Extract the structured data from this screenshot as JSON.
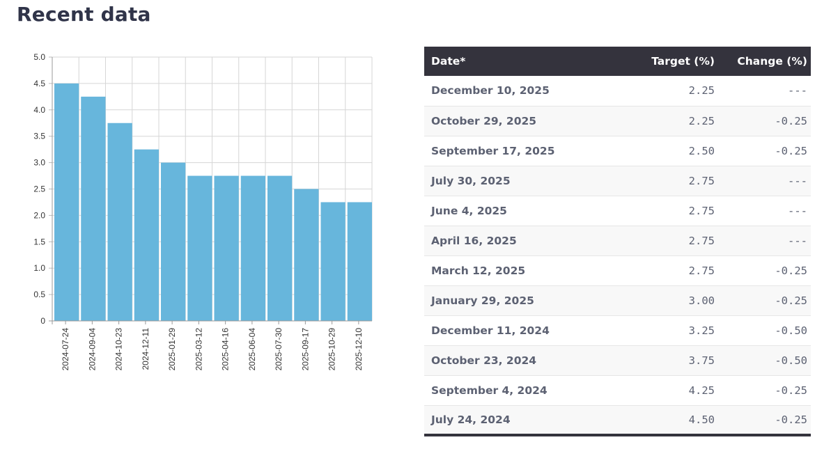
{
  "page": {
    "title": "Recent data"
  },
  "chart_data": {
    "type": "bar",
    "title": "",
    "xlabel": "",
    "ylabel": "",
    "ylim": [
      0,
      5
    ],
    "yticks": [
      "0",
      "0.5",
      "1.0",
      "1.5",
      "2.0",
      "2.5",
      "3.0",
      "3.5",
      "4.0",
      "4.5",
      "5.0"
    ],
    "grid": true,
    "categories": [
      "2024-07-24",
      "2024-09-04",
      "2024-10-23",
      "2024-12-11",
      "2025-01-29",
      "2025-03-12",
      "2025-04-16",
      "2025-06-04",
      "2025-07-30",
      "2025-09-17",
      "2025-10-29",
      "2025-12-10"
    ],
    "values": [
      4.5,
      4.25,
      3.75,
      3.25,
      3.0,
      2.75,
      2.75,
      2.75,
      2.75,
      2.5,
      2.25,
      2.25
    ],
    "bar_color": "#67b6dc"
  },
  "table": {
    "headers": {
      "date": "Date*",
      "target": "Target (%)",
      "change": "Change (%)"
    },
    "rows": [
      {
        "date": "December 10, 2025",
        "target": "2.25",
        "change": "---"
      },
      {
        "date": "October 29, 2025",
        "target": "2.25",
        "change": "-0.25"
      },
      {
        "date": "September 17, 2025",
        "target": "2.50",
        "change": "-0.25"
      },
      {
        "date": "July 30, 2025",
        "target": "2.75",
        "change": "---"
      },
      {
        "date": "June 4, 2025",
        "target": "2.75",
        "change": "---"
      },
      {
        "date": "April 16, 2025",
        "target": "2.75",
        "change": "---"
      },
      {
        "date": "March 12, 2025",
        "target": "2.75",
        "change": "-0.25"
      },
      {
        "date": "January 29, 2025",
        "target": "3.00",
        "change": "-0.25"
      },
      {
        "date": "December 11, 2024",
        "target": "3.25",
        "change": "-0.50"
      },
      {
        "date": "October 23, 2024",
        "target": "3.75",
        "change": "-0.50"
      },
      {
        "date": "September 4, 2024",
        "target": "4.25",
        "change": "-0.25"
      },
      {
        "date": "July 24, 2024",
        "target": "4.50",
        "change": "-0.25"
      }
    ]
  }
}
